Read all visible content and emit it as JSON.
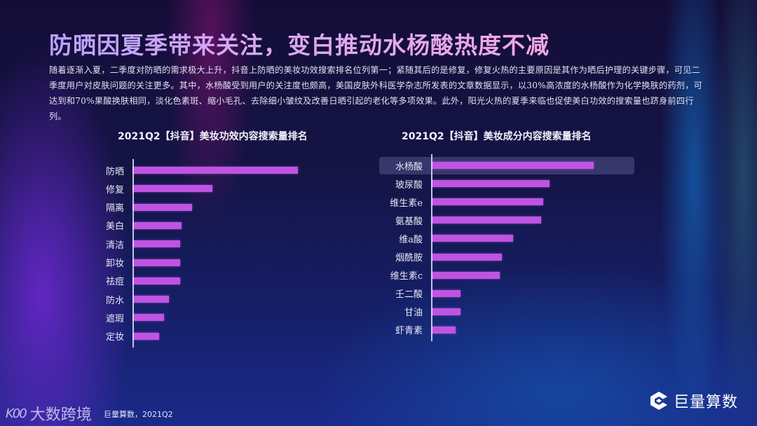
{
  "header": {
    "title": "防晒因夏季带来关注，变白推动水杨酸热度不减",
    "description": "随着逐渐入夏，二季度对防晒的需求极大上升，抖音上防晒的美妆功效搜索排名位列第一；紧随其后的是修复，修复火热的主要原因是其作为晒后护理的关键步骤，可见二季度用户对皮肤问题的关注更多。其中，水杨酸受到用户的关注度也颇高，美国皮肤外科医学杂志所发表的文章数据显示，以30%高浓度的水杨酸作为化学换肤的药剂，可达到和70%果酸换肤相同，淡化色素斑、缩小毛孔、去除细小皱纹及改善日晒引起的老化等多项效果。此外，阳光火热的夏季来临也促使美白功效的搜索量也跻身前四行列。"
  },
  "colors": {
    "bar": "#bf54e2",
    "title_gradient_start": "#b9a2ff",
    "title_gradient_end": "#f1a8e4",
    "highlight_row": "rgba(140,140,200,0.3)"
  },
  "chart_data": [
    {
      "type": "bar",
      "orientation": "horizontal",
      "title": "2021Q2【抖音】美妆功效内容搜索量排名",
      "xlabel": "",
      "ylabel": "",
      "grid": false,
      "axis_ticks_shown": false,
      "value_note": "relative index estimated from bar lengths (no scale shown)",
      "categories": [
        "防晒",
        "修复",
        "隔离",
        "美白",
        "清洁",
        "卸妆",
        "祛痘",
        "防水",
        "遮瑕",
        "定妆"
      ],
      "values": [
        235,
        113,
        84,
        69,
        67,
        67,
        67,
        51,
        44,
        37
      ]
    },
    {
      "type": "bar",
      "orientation": "horizontal",
      "title": "2021Q2【抖音】美妆成分内容搜索量排名",
      "xlabel": "",
      "ylabel": "",
      "grid": false,
      "axis_ticks_shown": false,
      "value_note": "relative index estimated from bar lengths (no scale shown)",
      "highlighted_category": "水杨酸",
      "categories": [
        "水杨酸",
        "玻尿酸",
        "维生素e",
        "氨基酸",
        "维a酸",
        "烟酰胺",
        "维生素c",
        "壬二酸",
        "甘油",
        "虾青素"
      ],
      "values": [
        231,
        168,
        159,
        156,
        116,
        100,
        97,
        41,
        41,
        34
      ]
    }
  ],
  "footer": {
    "source": "巨量算数，2021Q2",
    "watermark_mark": "K00",
    "watermark_text": "大数跨境",
    "brand_name": "巨量算数",
    "brand_icon": "brand-logo-icon"
  }
}
